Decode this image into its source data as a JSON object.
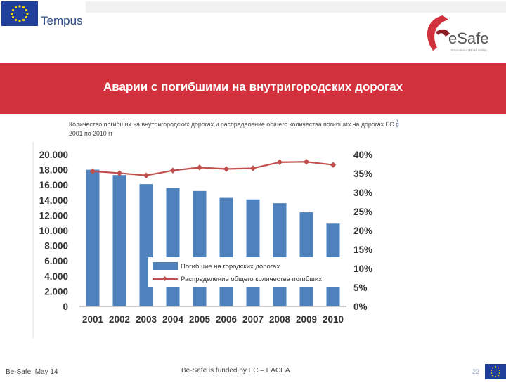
{
  "header": {
    "tempus_label": "Tempus",
    "esafe_label": "eSafe",
    "esafe_tagline": "Education in Road Safety"
  },
  "banner": {
    "title": "Аварии с погибшими на внутригородских дорогах"
  },
  "subtitle": "Количество погибших на внутригородских дорогах и распределение общего количества погибших на дорогах ЕС с 2001 по 2010 гг",
  "subtitle_bracket": ")",
  "footer": {
    "left": "Be-Safe, May 14",
    "center": "Be-Safe is funded by EC – EACEA",
    "page": "22"
  },
  "colors": {
    "banner": "#d1313d",
    "bar": "#4f81bd",
    "line": "#c0504d",
    "eu_blue": "#1f3f9a",
    "eu_star": "#ffdd00"
  },
  "chart_data": {
    "type": "bar",
    "categories": [
      "2001",
      "2002",
      "2003",
      "2004",
      "2005",
      "2006",
      "2007",
      "2008",
      "2009",
      "2010"
    ],
    "series": [
      {
        "name": "Погибшие на городских дорогах",
        "type": "bar",
        "axis": "left",
        "values": [
          18000,
          17300,
          16100,
          15600,
          15200,
          14300,
          14100,
          13600,
          12400,
          10900
        ]
      },
      {
        "name": "Распределение общего количества погибших",
        "type": "line",
        "axis": "right",
        "values": [
          0.356,
          0.351,
          0.345,
          0.358,
          0.366,
          0.362,
          0.364,
          0.38,
          0.381,
          0.373
        ]
      }
    ],
    "left_ticks": [
      "20.000",
      "18.000",
      "16.000",
      "14.000",
      "12.000",
      "10.000",
      "8.000",
      "6.000",
      "4.000",
      "2.000",
      "0"
    ],
    "right_ticks": [
      "40%",
      "35%",
      "30%",
      "25%",
      "20%",
      "15%",
      "10%",
      "5%",
      "0%"
    ],
    "ylim_left": [
      0,
      20000
    ],
    "ylim_right": [
      0,
      0.4
    ],
    "grid": false,
    "legend_placement": "bottom-center"
  }
}
